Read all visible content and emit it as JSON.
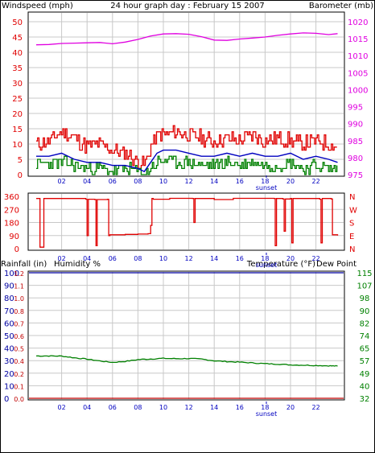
{
  "header": {
    "left_label": "Windspeed (mph)",
    "title": "24 hour graph day : February 15 2007",
    "right_label": "Barometer (mb)"
  },
  "colors": {
    "wind": "#e00000",
    "gust": "#e00000",
    "avg": "#0000c0",
    "low": "#008000",
    "barometer": "#e000e0",
    "direction": "#e00000",
    "humidity": "#0000a0",
    "temperature": "#008000",
    "rainfall": "#c00000",
    "grid": "#c8c8c8"
  },
  "x_axis": {
    "ticks": [
      "02",
      "04",
      "06",
      "08",
      "10",
      "12",
      "14",
      "16",
      "18",
      "20",
      "22"
    ],
    "event_label": "sunset"
  },
  "direction": {
    "left_ticks": [
      "360",
      "270",
      "180",
      "90",
      "0"
    ],
    "right_ticks": [
      "N",
      "W",
      "S",
      "E",
      "N"
    ]
  },
  "bottom_header": {
    "rain_label": "Rainfall (in)",
    "humidity_label": "Humidity %",
    "temp_label": "Temperature (°F)",
    "dew_label": "Dew Point"
  },
  "chart_data": [
    {
      "type": "line",
      "title": "24 hour graph day : February 15 2007",
      "x_range_hours": [
        0,
        24
      ],
      "ylabel": "Windspeed (mph)",
      "ylim": [
        0,
        50
      ],
      "y_ticks": [
        "0",
        "5",
        "10",
        "15",
        "20",
        "25",
        "30",
        "35",
        "40",
        "45",
        "50"
      ],
      "y2label": "Barometer (mb)",
      "y2lim": [
        975,
        1020
      ],
      "y2_ticks": [
        "975",
        "980",
        "985",
        "990",
        "995",
        "1000",
        "1005",
        "1010",
        "1015",
        "1020"
      ],
      "series": [
        {
          "name": "Windspeed (mph)",
          "axis": "left",
          "role": "gust",
          "x": [
            0,
            1,
            2,
            3,
            4,
            5,
            6,
            7,
            8,
            8.5,
            9,
            9.5,
            10,
            11,
            12,
            13,
            14,
            15,
            16,
            17,
            18,
            19,
            20,
            21,
            22,
            23,
            23.7
          ],
          "values": [
            10,
            11,
            14,
            12,
            9,
            10,
            8,
            7,
            4,
            3,
            9,
            13,
            13,
            14,
            13,
            12,
            11,
            12,
            11,
            13,
            11,
            12,
            11,
            10,
            11,
            10,
            9
          ]
        },
        {
          "name": "avg",
          "axis": "left",
          "role": "avg",
          "x": [
            0,
            1,
            2,
            3,
            4,
            5,
            6,
            7,
            8,
            8.5,
            9,
            9.5,
            10,
            11,
            12,
            13,
            14,
            15,
            16,
            17,
            18,
            19,
            20,
            21,
            22,
            23,
            23.7
          ],
          "values": [
            6,
            6,
            7,
            5,
            4,
            4,
            3,
            3,
            2,
            1,
            4,
            7,
            8,
            8,
            7,
            6,
            6,
            7,
            6,
            7,
            6,
            6,
            7,
            5,
            6,
            5,
            4
          ]
        },
        {
          "name": "low",
          "axis": "left",
          "role": "low",
          "x": [
            0,
            1,
            2,
            3,
            4,
            5,
            6,
            7,
            8,
            8.5,
            9,
            9.5,
            10,
            11,
            12,
            13,
            14,
            15,
            16,
            17,
            18,
            19,
            20,
            21,
            22,
            23,
            23.7
          ],
          "values": [
            3,
            4,
            4,
            3,
            2,
            2,
            1,
            2,
            1,
            0,
            2,
            4,
            5,
            4,
            4,
            3,
            3,
            4,
            3,
            4,
            3,
            3,
            4,
            2,
            3,
            2,
            2
          ]
        },
        {
          "name": "Barometer (mb)",
          "axis": "right",
          "role": "barometer",
          "x": [
            0,
            1,
            2,
            3,
            4,
            5,
            6,
            7,
            8,
            9,
            10,
            11,
            12,
            13,
            14,
            15,
            16,
            17,
            18,
            19,
            20,
            21,
            22,
            23,
            23.7
          ],
          "values": [
            1013.2,
            1013.3,
            1013.6,
            1013.7,
            1013.8,
            1013.9,
            1013.5,
            1014.0,
            1014.8,
            1015.8,
            1016.4,
            1016.5,
            1016.3,
            1015.6,
            1014.6,
            1014.5,
            1014.9,
            1015.2,
            1015.5,
            1016.0,
            1016.4,
            1016.7,
            1016.6,
            1016.2,
            1016.5
          ]
        }
      ]
    },
    {
      "type": "line",
      "title": "",
      "ylim": [
        0,
        360
      ],
      "y_ticks": [
        "360",
        "270",
        "180",
        "90",
        "0"
      ],
      "series": [
        {
          "name": "wind direction",
          "role": "direction",
          "x": [
            0,
            0.3,
            0.6,
            3.9,
            4.0,
            4.1,
            4.6,
            4.7,
            4.8,
            5.6,
            5.7,
            5.8,
            7.0,
            8.0,
            8.8,
            9.0,
            9.1,
            9.2,
            10.5,
            12.3,
            12.4,
            12.5,
            14.0,
            15.5,
            18.7,
            18.8,
            18.9,
            19.4,
            19.5,
            19.6,
            20.0,
            20.1,
            20.2,
            22.3,
            22.4,
            22.5,
            23.2,
            23.3,
            23.7
          ],
          "values": [
            345,
            10,
            345,
            340,
            90,
            340,
            338,
            20,
            338,
            340,
            90,
            95,
            98,
            100,
            103,
            160,
            345,
            340,
            346,
            345,
            180,
            345,
            338,
            346,
            345,
            20,
            345,
            342,
            120,
            342,
            345,
            40,
            345,
            340,
            40,
            345,
            342,
            95,
            90
          ]
        }
      ]
    },
    {
      "type": "line",
      "title": "",
      "ylabel": "Rainfall (in) / Humidity %",
      "humidity_ylim": [
        0,
        100
      ],
      "humidity_ticks": [
        "0",
        "10",
        "20",
        "30",
        "40",
        "50",
        "60",
        "70",
        "80",
        "90",
        "100"
      ],
      "rain_ylim": [
        0,
        1.2
      ],
      "rain_ticks": [
        "0.0",
        "0.1",
        "0.2",
        "0.4",
        "0.5",
        "0.6",
        "0.7",
        "0.8",
        "1.0",
        "1.1",
        "1.2"
      ],
      "temp_ylim": [
        32,
        115
      ],
      "temp_ticks": [
        "32",
        "40",
        "49",
        "57",
        "65",
        "74",
        "82",
        "90",
        "98",
        "107",
        "115"
      ],
      "series": [
        {
          "name": "Humidity %",
          "axis": "humidity",
          "role": "humidity",
          "x": [
            0,
            23.7
          ],
          "values": [
            100,
            100
          ]
        },
        {
          "name": "Rainfall (in)",
          "axis": "rain",
          "role": "rainfall",
          "x": [
            0,
            23.7
          ],
          "values": [
            0.0,
            0.0
          ]
        },
        {
          "name": "Temperature (°F)",
          "axis": "temp",
          "role": "temperature",
          "x": [
            0,
            1,
            2,
            3,
            4,
            5,
            6,
            7,
            8,
            9,
            10,
            11,
            12,
            13,
            14,
            15,
            16,
            17,
            18,
            19,
            20,
            21,
            22,
            23,
            23.7
          ],
          "values": [
            60.0,
            60.0,
            59.9,
            58.8,
            57.9,
            56.7,
            55.7,
            56.4,
            57.6,
            58.0,
            58.4,
            58.2,
            58.3,
            57.9,
            56.8,
            56.3,
            55.9,
            55.4,
            54.9,
            54.6,
            54.1,
            53.9,
            53.7,
            53.5,
            53.3
          ]
        }
      ]
    }
  ]
}
